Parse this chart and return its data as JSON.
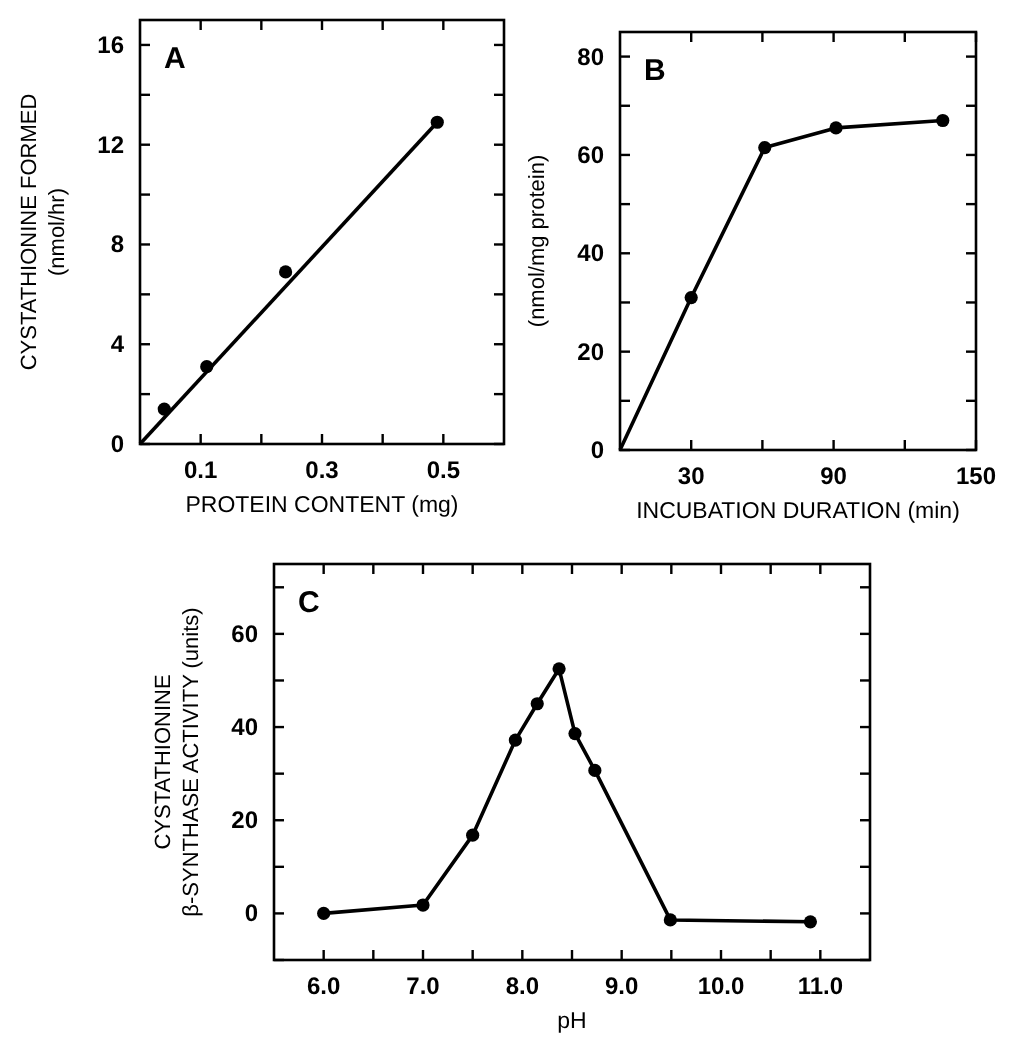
{
  "chart_data": [
    {
      "type": "scatter",
      "title": "A",
      "xlabel": "PROTEIN CONTENT (mg)",
      "ylabel": "CYSTATHIONINE FORMED\n(nmol/hr)",
      "xlim": [
        0,
        0.6
      ],
      "ylim": [
        0,
        17
      ],
      "xticks": [
        {
          "value": 0.1,
          "label": "0.1"
        },
        {
          "value": 0.2,
          "label": null
        },
        {
          "value": 0.3,
          "label": "0.3"
        },
        {
          "value": 0.4,
          "label": null
        },
        {
          "value": 0.5,
          "label": "0.5"
        }
      ],
      "yticks": [
        0,
        {
          "value": 2,
          "label": null
        },
        4,
        {
          "value": 6,
          "label": null
        },
        8,
        {
          "value": 10,
          "label": null
        },
        12,
        {
          "value": 14,
          "label": null
        },
        16
      ],
      "series": [
        {
          "color": "#000000",
          "marker": "circle",
          "x": [
            0.04,
            0.11,
            0.24,
            0.49
          ],
          "values": [
            1.4,
            3.1,
            6.9,
            12.9
          ]
        },
        {
          "type": "line",
          "color": "#000000",
          "marker": "none",
          "x": [
            0,
            0.49
          ],
          "values": [
            0,
            12.9
          ]
        }
      ]
    },
    {
      "type": "line",
      "title": "B",
      "xlabel": "INCUBATION DURATION (min)",
      "ylabel": "(nmol/mg protein)",
      "xlim": [
        0,
        150
      ],
      "ylim": [
        0,
        85
      ],
      "xticks": [
        30,
        {
          "value": 60,
          "label": null
        },
        90,
        {
          "value": 120,
          "label": null
        },
        150
      ],
      "yticks": [
        0,
        {
          "value": 10,
          "label": null
        },
        20,
        {
          "value": 30,
          "label": null
        },
        40,
        {
          "value": 50,
          "label": null
        },
        60,
        {
          "value": 70,
          "label": null
        },
        80
      ],
      "series": [
        {
          "color": "#000000",
          "marker": "none",
          "x": [
            0,
            30,
            61,
            91,
            136
          ],
          "values": [
            0,
            31,
            61.5,
            65.5,
            67
          ]
        },
        {
          "type": "scatter",
          "color": "#000000",
          "marker": "circle",
          "x": [
            30,
            61,
            91,
            136
          ],
          "values": [
            31,
            61.5,
            65.5,
            67
          ]
        }
      ]
    },
    {
      "type": "line",
      "title": "C",
      "xlabel": "pH",
      "ylabel": "CYSTATHIONINE\nβ-SYNTHASE ACTIVITY (units)",
      "xlim": [
        5.5,
        11.5
      ],
      "ylim": [
        -10,
        75
      ],
      "xticks": [
        {
          "value": 6,
          "label": "6.0"
        },
        {
          "value": 6.5,
          "label": null
        },
        {
          "value": 7,
          "label": "7.0"
        },
        {
          "value": 7.5,
          "label": null
        },
        {
          "value": 8,
          "label": "8.0"
        },
        {
          "value": 8.5,
          "label": null
        },
        {
          "value": 9,
          "label": "9.0"
        },
        {
          "value": 9.5,
          "label": null
        },
        {
          "value": 10,
          "label": "10.0"
        },
        {
          "value": 10.5,
          "label": null
        },
        {
          "value": 11,
          "label": "11.0"
        }
      ],
      "yticks": [
        {
          "value": -10,
          "label": null
        },
        0,
        {
          "value": 10,
          "label": null
        },
        20,
        {
          "value": 30,
          "label": null
        },
        40,
        {
          "value": 50,
          "label": null
        },
        60,
        {
          "value": 70,
          "label": null
        }
      ],
      "series": [
        {
          "color": "#000000",
          "marker": "circle",
          "x": [
            6.0,
            7.0,
            7.5,
            7.93,
            8.15,
            8.37,
            8.53,
            8.73,
            9.49,
            10.9
          ],
          "values": [
            0,
            1.8,
            16.8,
            37.2,
            45,
            52.5,
            38.6,
            30.7,
            -1.4,
            -1.8
          ]
        }
      ]
    }
  ]
}
